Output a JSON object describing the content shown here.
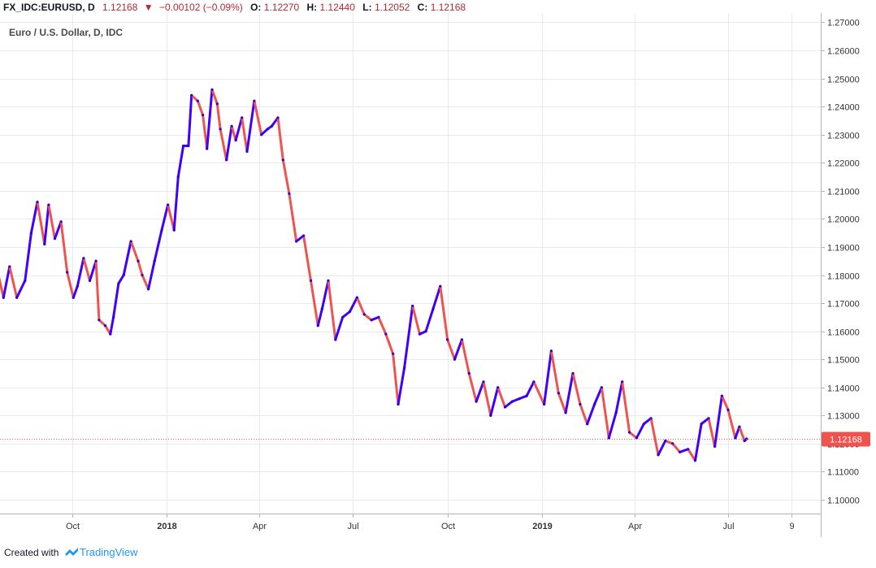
{
  "header": {
    "symbol": "FX_IDC:EURUSD, D",
    "last": "1.12168",
    "change": "−0.00102 (−0.09%)",
    "o_label": "O:",
    "o": "1.12270",
    "h_label": "H:",
    "h": "1.12440",
    "l_label": "L:",
    "l": "1.12052",
    "c_label": "C:",
    "c": "1.12168"
  },
  "legend": {
    "title": "Euro / U.S. Dollar, D, IDC"
  },
  "footer": {
    "created_with": "Created with",
    "brand": "TradingView"
  },
  "colors": {
    "up": "#3f00ff",
    "down": "#ef5350",
    "price_label_bg": "#ef5350",
    "grid": "#e6e9ef",
    "axis_text": "#333333"
  },
  "chart_data": {
    "type": "line",
    "ylim": [
      1.095,
      1.272
    ],
    "y_ticks": [
      "1.27000",
      "1.26000",
      "1.25000",
      "1.24000",
      "1.23000",
      "1.22000",
      "1.21000",
      "1.20000",
      "1.19000",
      "1.18000",
      "1.17000",
      "1.16000",
      "1.15000",
      "1.14000",
      "1.13000",
      "1.12000",
      "1.11000",
      "1.10000"
    ],
    "x_ticks": [
      {
        "label": "Oct",
        "date": "2017-10-01",
        "bold": false
      },
      {
        "label": "2018",
        "date": "2018-01-01",
        "bold": true
      },
      {
        "label": "Apr",
        "date": "2018-04-01",
        "bold": false
      },
      {
        "label": "Jul",
        "date": "2018-07-01",
        "bold": false
      },
      {
        "label": "Oct",
        "date": "2018-10-01",
        "bold": false
      },
      {
        "label": "2019",
        "date": "2019-01-01",
        "bold": true
      },
      {
        "label": "Apr",
        "date": "2019-04-01",
        "bold": false
      },
      {
        "label": "Jul",
        "date": "2019-07-01",
        "bold": false
      },
      {
        "label": "9",
        "date": "2019-09-01",
        "bold": false
      }
    ],
    "last_price": 1.12168,
    "last_price_label": "1.12168",
    "series": [
      {
        "values": [
          [
            "2017-07-12",
            1.168
          ],
          [
            "2017-07-18",
            1.185
          ],
          [
            "2017-07-26",
            1.172
          ],
          [
            "2017-08-01",
            1.183
          ],
          [
            "2017-08-08",
            1.172
          ],
          [
            "2017-08-16",
            1.178
          ],
          [
            "2017-08-22",
            1.195
          ],
          [
            "2017-08-28",
            1.206
          ],
          [
            "2017-09-04",
            1.191
          ],
          [
            "2017-09-08",
            1.205
          ],
          [
            "2017-09-14",
            1.193
          ],
          [
            "2017-09-20",
            1.199
          ],
          [
            "2017-09-26",
            1.181
          ],
          [
            "2017-10-02",
            1.172
          ],
          [
            "2017-10-06",
            1.176
          ],
          [
            "2017-10-12",
            1.186
          ],
          [
            "2017-10-18",
            1.178
          ],
          [
            "2017-10-24",
            1.185
          ],
          [
            "2017-10-27",
            1.164
          ],
          [
            "2017-11-02",
            1.162
          ],
          [
            "2017-11-07",
            1.159
          ],
          [
            "2017-11-10",
            1.165
          ],
          [
            "2017-11-15",
            1.177
          ],
          [
            "2017-11-20",
            1.18
          ],
          [
            "2017-11-27",
            1.192
          ],
          [
            "2017-12-04",
            1.185
          ],
          [
            "2017-12-08",
            1.18
          ],
          [
            "2017-12-14",
            1.175
          ],
          [
            "2017-12-20",
            1.185
          ],
          [
            "2017-12-27",
            1.196
          ],
          [
            "2018-01-02",
            1.205
          ],
          [
            "2018-01-08",
            1.196
          ],
          [
            "2018-01-12",
            1.215
          ],
          [
            "2018-01-17",
            1.226
          ],
          [
            "2018-01-22",
            1.226
          ],
          [
            "2018-01-25",
            1.244
          ],
          [
            "2018-01-31",
            1.242
          ],
          [
            "2018-02-05",
            1.237
          ],
          [
            "2018-02-09",
            1.225
          ],
          [
            "2018-02-14",
            1.246
          ],
          [
            "2018-02-19",
            1.241
          ],
          [
            "2018-02-22",
            1.232
          ],
          [
            "2018-02-28",
            1.221
          ],
          [
            "2018-03-05",
            1.233
          ],
          [
            "2018-03-09",
            1.228
          ],
          [
            "2018-03-15",
            1.236
          ],
          [
            "2018-03-20",
            1.224
          ],
          [
            "2018-03-27",
            1.242
          ],
          [
            "2018-04-03",
            1.23
          ],
          [
            "2018-04-09",
            1.232
          ],
          [
            "2018-04-13",
            1.233
          ],
          [
            "2018-04-19",
            1.236
          ],
          [
            "2018-04-24",
            1.221
          ],
          [
            "2018-04-30",
            1.209
          ],
          [
            "2018-05-07",
            1.192
          ],
          [
            "2018-05-14",
            1.194
          ],
          [
            "2018-05-21",
            1.178
          ],
          [
            "2018-05-28",
            1.162
          ],
          [
            "2018-06-01",
            1.168
          ],
          [
            "2018-06-07",
            1.178
          ],
          [
            "2018-06-14",
            1.157
          ],
          [
            "2018-06-21",
            1.165
          ],
          [
            "2018-06-28",
            1.167
          ],
          [
            "2018-07-05",
            1.172
          ],
          [
            "2018-07-12",
            1.166
          ],
          [
            "2018-07-19",
            1.164
          ],
          [
            "2018-07-26",
            1.165
          ],
          [
            "2018-08-02",
            1.159
          ],
          [
            "2018-08-09",
            1.152
          ],
          [
            "2018-08-14",
            1.134
          ],
          [
            "2018-08-20",
            1.147
          ],
          [
            "2018-08-28",
            1.169
          ],
          [
            "2018-09-04",
            1.159
          ],
          [
            "2018-09-10",
            1.16
          ],
          [
            "2018-09-17",
            1.168
          ],
          [
            "2018-09-24",
            1.176
          ],
          [
            "2018-10-01",
            1.157
          ],
          [
            "2018-10-08",
            1.15
          ],
          [
            "2018-10-15",
            1.157
          ],
          [
            "2018-10-22",
            1.145
          ],
          [
            "2018-10-29",
            1.135
          ],
          [
            "2018-11-05",
            1.142
          ],
          [
            "2018-11-12",
            1.13
          ],
          [
            "2018-11-19",
            1.14
          ],
          [
            "2018-11-26",
            1.133
          ],
          [
            "2018-12-03",
            1.135
          ],
          [
            "2018-12-10",
            1.136
          ],
          [
            "2018-12-17",
            1.137
          ],
          [
            "2018-12-24",
            1.142
          ],
          [
            "2019-01-03",
            1.134
          ],
          [
            "2019-01-10",
            1.153
          ],
          [
            "2019-01-17",
            1.138
          ],
          [
            "2019-01-24",
            1.131
          ],
          [
            "2019-01-31",
            1.145
          ],
          [
            "2019-02-07",
            1.134
          ],
          [
            "2019-02-14",
            1.127
          ],
          [
            "2019-02-21",
            1.134
          ],
          [
            "2019-02-28",
            1.14
          ],
          [
            "2019-03-07",
            1.122
          ],
          [
            "2019-03-14",
            1.131
          ],
          [
            "2019-03-20",
            1.142
          ],
          [
            "2019-03-27",
            1.124
          ],
          [
            "2019-04-03",
            1.122
          ],
          [
            "2019-04-10",
            1.127
          ],
          [
            "2019-04-17",
            1.129
          ],
          [
            "2019-04-24",
            1.116
          ],
          [
            "2019-05-01",
            1.121
          ],
          [
            "2019-05-08",
            1.12
          ],
          [
            "2019-05-15",
            1.117
          ],
          [
            "2019-05-23",
            1.118
          ],
          [
            "2019-05-30",
            1.114
          ],
          [
            "2019-06-05",
            1.127
          ],
          [
            "2019-06-12",
            1.129
          ],
          [
            "2019-06-18",
            1.119
          ],
          [
            "2019-06-25",
            1.137
          ],
          [
            "2019-07-01",
            1.132
          ],
          [
            "2019-07-08",
            1.122
          ],
          [
            "2019-07-12",
            1.126
          ],
          [
            "2019-07-17",
            1.121
          ],
          [
            "2019-07-19",
            1.1217
          ]
        ]
      }
    ]
  }
}
